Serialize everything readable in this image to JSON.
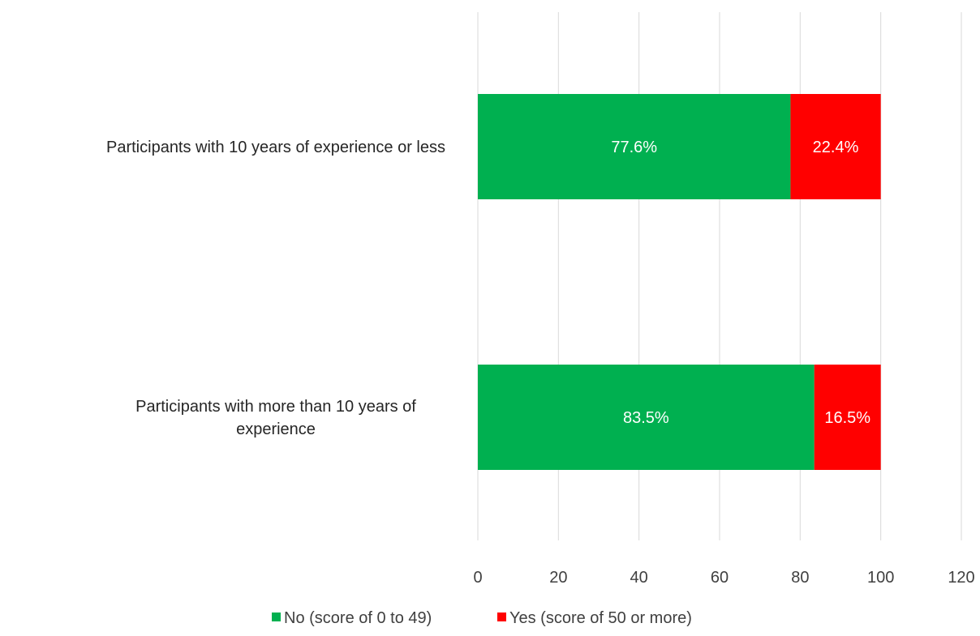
{
  "chart_data": {
    "type": "bar",
    "orientation": "horizontal",
    "stacked": true,
    "categories": [
      "Participants with 10 years of experience or less",
      "Participants with more than 10 years of experience"
    ],
    "category_lines": [
      [
        "Participants with 10 years of experience or less"
      ],
      [
        "Participants with more than 10 years of",
        "experience"
      ]
    ],
    "series": [
      {
        "name": "No (score of 0 to 49)",
        "color": "#00b050",
        "values": [
          77.6,
          83.5
        ],
        "labels": [
          "77.6%",
          "83.5%"
        ]
      },
      {
        "name": "Yes (score of 50 or more)",
        "color": "#ff0000",
        "values": [
          22.4,
          16.5
        ],
        "labels": [
          "22.4%",
          "16.5%"
        ]
      }
    ],
    "xlim": [
      0,
      120
    ],
    "xticks": [
      "0",
      "20",
      "40",
      "60",
      "80",
      "100",
      "120"
    ],
    "grid": true,
    "legend_position": "bottom",
    "title": "",
    "xlabel": "",
    "ylabel": ""
  }
}
